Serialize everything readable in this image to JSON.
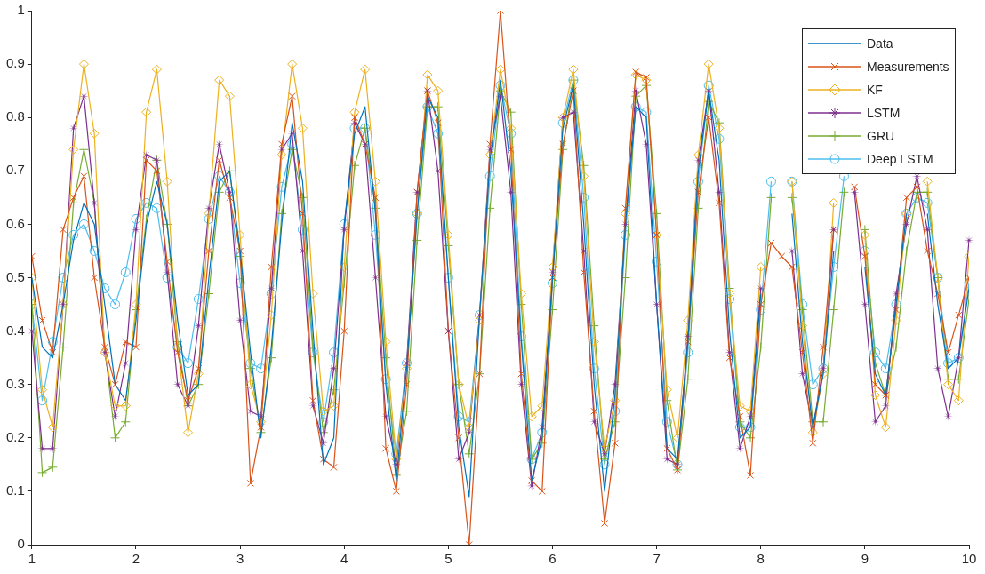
{
  "chart_data": {
    "type": "line",
    "x": [
      1,
      1.1,
      1.2,
      1.3,
      1.4,
      1.5,
      1.6,
      1.7,
      1.8,
      1.9,
      2,
      2.1,
      2.2,
      2.3,
      2.4,
      2.5,
      2.6,
      2.7,
      2.8,
      2.9,
      3,
      3.1,
      3.2,
      3.3,
      3.4,
      3.5,
      3.6,
      3.7,
      3.8,
      3.9,
      4,
      4.1,
      4.2,
      4.3,
      4.4,
      4.5,
      4.6,
      4.7,
      4.8,
      4.9,
      5,
      5.1,
      5.2,
      5.3,
      5.4,
      5.5,
      5.6,
      5.7,
      5.8,
      5.9,
      6,
      6.1,
      6.2,
      6.3,
      6.4,
      6.5,
      6.6,
      6.7,
      6.8,
      6.9,
      7,
      7.1,
      7.2,
      7.3,
      7.4,
      7.5,
      7.6,
      7.7,
      7.8,
      7.9,
      8,
      8.1,
      8.2,
      8.3,
      8.4,
      8.5,
      8.6,
      8.7,
      8.8,
      8.9,
      9,
      9.1,
      9.2,
      9.3,
      9.4,
      9.5,
      9.6,
      9.7,
      9.8,
      9.9,
      10
    ],
    "series": [
      {
        "name": "Data",
        "color": "#0072bd",
        "marker": "none",
        "values": [
          0.5,
          0.37,
          0.35,
          0.45,
          0.57,
          0.64,
          0.6,
          0.45,
          0.3,
          0.27,
          0.42,
          0.6,
          0.68,
          0.6,
          0.42,
          0.28,
          0.3,
          0.5,
          0.68,
          0.7,
          0.55,
          0.36,
          0.2,
          0.37,
          0.6,
          0.79,
          0.68,
          0.4,
          0.15,
          0.2,
          0.6,
          0.77,
          0.82,
          0.62,
          0.3,
          0.12,
          0.33,
          0.62,
          0.84,
          0.8,
          0.5,
          0.22,
          0.09,
          0.43,
          0.72,
          0.87,
          0.7,
          0.38,
          0.12,
          0.2,
          0.5,
          0.78,
          0.86,
          0.6,
          0.3,
          0.1,
          0.28,
          0.6,
          0.82,
          0.8,
          0.45,
          0.18,
          0.16,
          0.38,
          0.7,
          0.85,
          0.72,
          0.4,
          0.2,
          0.22,
          0.47,
          null,
          null,
          0.62,
          0.38,
          0.22,
          0.32,
          0.55,
          null,
          null,
          0.52,
          0.32,
          0.28,
          0.45,
          0.62,
          null,
          0.62,
          0.45,
          0.33,
          0.35,
          0.48
        ]
      },
      {
        "name": "Measurements",
        "color": "#d95319",
        "marker": "x",
        "values": [
          0.54,
          0.42,
          0.36,
          0.59,
          0.65,
          0.69,
          0.5,
          0.37,
          0.3,
          0.38,
          0.37,
          0.72,
          0.7,
          0.53,
          0.36,
          0.27,
          0.33,
          0.55,
          0.72,
          0.65,
          0.55,
          0.115,
          0.22,
          0.52,
          0.75,
          0.84,
          0.62,
          0.27,
          0.16,
          0.145,
          0.4,
          0.8,
          0.75,
          0.65,
          0.18,
          0.1,
          0.3,
          0.66,
          0.85,
          0.79,
          0.4,
          0.2,
          0,
          0.32,
          0.75,
          1,
          0.74,
          0.32,
          0.12,
          0.1,
          0.5,
          0.75,
          0.85,
          0.51,
          0.25,
          0.04,
          0.19,
          0.63,
          0.885,
          0.875,
          0.58,
          0.18,
          0.14,
          0.38,
          0.66,
          0.8,
          0.64,
          0.35,
          0.24,
          0.13,
          0.45,
          0.565,
          0.54,
          0.52,
          0.36,
          0.19,
          0.37,
          0.59,
          null,
          0.67,
          0.54,
          0.3,
          0.28,
          0.44,
          0.65,
          0.67,
          0.55,
          0.47,
          0.36,
          0.43,
          0.5
        ]
      },
      {
        "name": "KF",
        "color": "#edb120",
        "marker": "diamond",
        "values": [
          0.5,
          0.29,
          0.22,
          0.45,
          0.74,
          0.9,
          0.77,
          0.36,
          0.26,
          0.26,
          0.45,
          0.81,
          0.89,
          0.68,
          0.37,
          0.21,
          0.32,
          0.62,
          0.87,
          0.84,
          0.58,
          0.3,
          0.23,
          0.43,
          0.73,
          0.9,
          0.78,
          0.47,
          0.25,
          0.26,
          0.52,
          0.81,
          0.89,
          0.68,
          0.38,
          0.16,
          0.33,
          0.62,
          0.88,
          0.85,
          0.58,
          0.3,
          0.22,
          0.42,
          0.73,
          0.89,
          0.78,
          0.47,
          0.24,
          0.26,
          0.52,
          0.8,
          0.89,
          0.69,
          0.38,
          0.18,
          0.27,
          0.62,
          0.88,
          0.87,
          0.58,
          0.29,
          0.2,
          0.42,
          0.73,
          0.9,
          0.78,
          0.47,
          0.26,
          0.25,
          0.52,
          null,
          null,
          0.68,
          0.41,
          0.21,
          0.32,
          0.64,
          null,
          null,
          0.58,
          0.28,
          0.22,
          0.42,
          0.62,
          null,
          0.68,
          0.5,
          0.3,
          0.27,
          0.54
        ]
      },
      {
        "name": "LSTM",
        "color": "#7e2f8e",
        "marker": "star",
        "values": [
          0.4,
          0.18,
          0.18,
          0.45,
          0.78,
          0.84,
          0.64,
          0.36,
          0.24,
          0.34,
          0.59,
          0.73,
          0.72,
          0.51,
          0.3,
          0.26,
          0.41,
          0.63,
          0.75,
          0.66,
          0.42,
          0.25,
          0.24,
          0.48,
          0.74,
          0.77,
          0.55,
          0.26,
          0.19,
          0.33,
          0.59,
          0.79,
          0.75,
          0.5,
          0.24,
          0.15,
          0.34,
          0.66,
          0.85,
          0.7,
          0.4,
          0.16,
          0.21,
          0.43,
          0.74,
          0.84,
          0.66,
          0.3,
          0.11,
          0.22,
          0.51,
          0.8,
          0.81,
          0.55,
          0.23,
          0.17,
          0.3,
          0.6,
          0.85,
          0.75,
          0.45,
          0.16,
          0.15,
          0.39,
          0.72,
          0.85,
          0.66,
          0.36,
          0.18,
          0.24,
          0.48,
          null,
          null,
          0.55,
          0.32,
          0.22,
          0.33,
          0.59,
          null,
          0.66,
          0.45,
          0.23,
          0.26,
          0.47,
          0.6,
          0.69,
          0.59,
          0.33,
          0.24,
          0.35,
          0.57
        ]
      },
      {
        "name": "GRU",
        "color": "#77ac30",
        "marker": "plus",
        "values": [
          0.45,
          0.135,
          0.145,
          0.37,
          0.64,
          0.74,
          0.64,
          0.37,
          0.2,
          0.23,
          0.44,
          0.61,
          0.72,
          0.6,
          0.38,
          0.26,
          0.3,
          0.47,
          0.66,
          0.7,
          0.54,
          0.33,
          0.21,
          0.35,
          0.62,
          0.74,
          0.65,
          0.37,
          0.21,
          0.29,
          0.49,
          0.71,
          0.78,
          0.63,
          0.35,
          0.13,
          0.25,
          0.57,
          0.82,
          0.82,
          0.56,
          0.3,
          0.17,
          0.32,
          0.63,
          0.85,
          0.81,
          0.45,
          0.16,
          0.19,
          0.44,
          0.74,
          0.87,
          0.71,
          0.41,
          0.16,
          0.23,
          0.5,
          0.84,
          0.86,
          0.62,
          0.27,
          0.14,
          0.31,
          0.63,
          0.83,
          0.79,
          0.48,
          0.23,
          0.2,
          0.37,
          0.65,
          null,
          0.65,
          0.44,
          0.23,
          0.23,
          0.44,
          0.66,
          null,
          0.59,
          0.34,
          0.28,
          0.37,
          0.55,
          0.66,
          0.66,
          0.5,
          0.31,
          0.31,
          0.46
        ]
      },
      {
        "name": "Deep LSTM",
        "color": "#4dbeee",
        "marker": "circle",
        "values": [
          0.45,
          0.27,
          0.38,
          0.5,
          0.58,
          0.6,
          0.55,
          0.48,
          0.45,
          0.51,
          0.61,
          0.64,
          0.63,
          0.5,
          0.37,
          0.34,
          0.46,
          0.61,
          0.69,
          0.66,
          0.49,
          0.34,
          0.33,
          0.47,
          0.67,
          0.75,
          0.59,
          0.36,
          0.23,
          0.36,
          0.6,
          0.78,
          0.78,
          0.58,
          0.31,
          0.17,
          0.34,
          0.62,
          0.82,
          0.77,
          0.5,
          0.24,
          0.23,
          0.43,
          0.69,
          0.86,
          0.77,
          0.39,
          0.16,
          0.21,
          0.49,
          0.79,
          0.87,
          0.65,
          0.33,
          0.15,
          0.25,
          0.58,
          0.82,
          0.81,
          0.53,
          0.23,
          0.15,
          0.36,
          0.68,
          0.86,
          0.76,
          0.46,
          0.22,
          0.22,
          0.44,
          0.68,
          null,
          0.68,
          0.45,
          0.3,
          0.33,
          0.52,
          0.69,
          null,
          0.55,
          0.36,
          0.33,
          0.45,
          0.62,
          0.65,
          0.64,
          0.5,
          0.34,
          0.35,
          0.49
        ]
      }
    ],
    "xlim": [
      1,
      10
    ],
    "xticks": [
      1,
      2,
      3,
      4,
      5,
      6,
      7,
      8,
      9,
      10
    ],
    "ylim": [
      0,
      1
    ],
    "yticks": [
      0,
      0.1,
      0.2,
      0.3,
      0.4,
      0.5,
      0.6,
      0.7,
      0.8,
      0.9,
      1
    ],
    "grid": false,
    "legend": "top right",
    "line_style": "solid"
  }
}
